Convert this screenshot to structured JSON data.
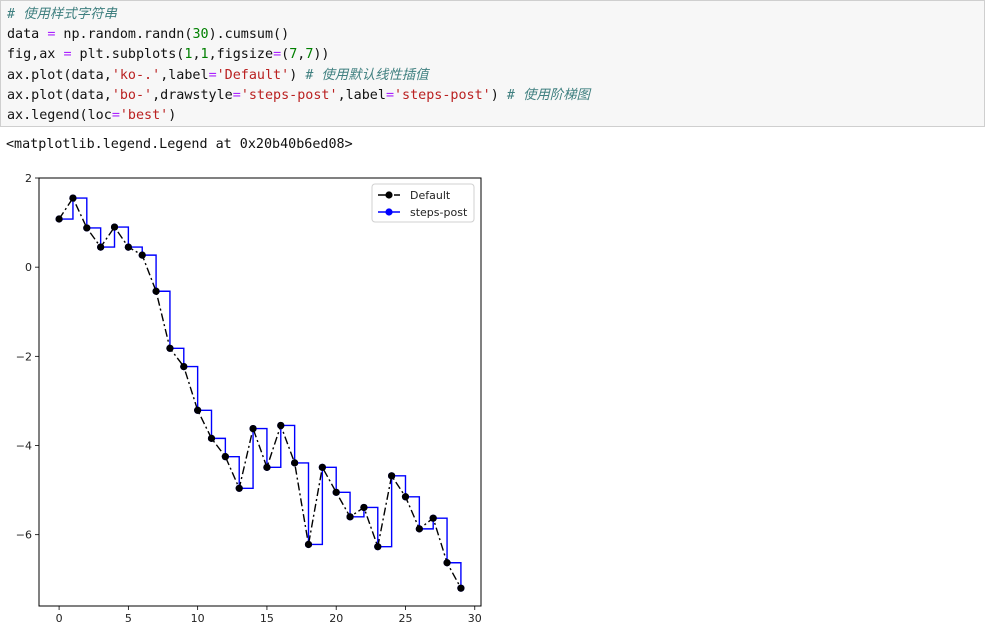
{
  "cell": {
    "code_lines": [
      [
        {
          "t": "# 使用样式字符串",
          "c": "comment"
        }
      ],
      [
        {
          "t": "data "
        },
        {
          "t": "=",
          "c": "op"
        },
        {
          "t": " np.random.randn("
        },
        {
          "t": "30",
          "c": "num"
        },
        {
          "t": ").cumsum()"
        }
      ],
      [
        {
          "t": "fig,ax "
        },
        {
          "t": "=",
          "c": "op"
        },
        {
          "t": " plt.subplots("
        },
        {
          "t": "1",
          "c": "num"
        },
        {
          "t": ","
        },
        {
          "t": "1",
          "c": "num"
        },
        {
          "t": ",figsize"
        },
        {
          "t": "=",
          "c": "op"
        },
        {
          "t": "("
        },
        {
          "t": "7",
          "c": "num"
        },
        {
          "t": ","
        },
        {
          "t": "7",
          "c": "num"
        },
        {
          "t": "))"
        }
      ],
      [
        {
          "t": "ax.plot(data,"
        },
        {
          "t": "'ko-.'",
          "c": "str"
        },
        {
          "t": ",label"
        },
        {
          "t": "=",
          "c": "op"
        },
        {
          "t": "'Default'",
          "c": "str"
        },
        {
          "t": ") "
        },
        {
          "t": "# 使用默认线性插值",
          "c": "comment"
        }
      ],
      [
        {
          "t": "ax.plot(data,"
        },
        {
          "t": "'bo-'",
          "c": "str"
        },
        {
          "t": ",drawstyle"
        },
        {
          "t": "=",
          "c": "op"
        },
        {
          "t": "'steps-post'",
          "c": "str"
        },
        {
          "t": ",label"
        },
        {
          "t": "=",
          "c": "op"
        },
        {
          "t": "'steps-post'",
          "c": "str"
        },
        {
          "t": ") "
        },
        {
          "t": "# 使用阶梯图",
          "c": "comment"
        }
      ],
      [
        {
          "t": "ax.legend(loc"
        },
        {
          "t": "=",
          "c": "op"
        },
        {
          "t": "'best'",
          "c": "str"
        },
        {
          "t": ")"
        }
      ]
    ]
  },
  "output": {
    "text": "<matplotlib.legend.Legend at 0x20b40b6ed08>"
  },
  "colors": {
    "default_series": "#000000",
    "steps_series": "#0000ff"
  },
  "chart_data": {
    "type": "line",
    "title": "",
    "xlabel": "",
    "ylabel": "",
    "xlim": [
      -1.45,
      30.45
    ],
    "ylim": [
      -7.6,
      2
    ],
    "xticks": [
      0,
      5,
      10,
      15,
      20,
      25,
      30
    ],
    "yticks": [
      2,
      0,
      -2,
      -4,
      -6
    ],
    "ytick_labels": [
      "2",
      "0",
      "−2",
      "−4",
      "−6"
    ],
    "grid": false,
    "legend_position": "top-right",
    "x": [
      0,
      1,
      2,
      3,
      4,
      5,
      6,
      7,
      8,
      9,
      10,
      11,
      12,
      13,
      14,
      15,
      16,
      17,
      18,
      19,
      20,
      21,
      22,
      23,
      24,
      25,
      26,
      27,
      28,
      29
    ],
    "series": [
      {
        "name": "Default",
        "style": "ko-.",
        "drawstyle": "default",
        "values": [
          1.08,
          1.55,
          0.88,
          0.45,
          0.9,
          0.45,
          0.27,
          -0.54,
          -1.82,
          -2.23,
          -3.21,
          -3.84,
          -4.25,
          -4.96,
          -3.62,
          -4.49,
          -3.55,
          -4.39,
          -6.22,
          -4.49,
          -5.05,
          -5.6,
          -5.39,
          -6.27,
          -4.68,
          -5.15,
          -5.87,
          -5.63,
          -6.63,
          -7.2
        ]
      },
      {
        "name": "steps-post",
        "style": "bo-",
        "drawstyle": "steps-post",
        "values": [
          1.08,
          1.55,
          0.88,
          0.45,
          0.9,
          0.45,
          0.27,
          -0.54,
          -1.82,
          -2.23,
          -3.21,
          -3.84,
          -4.25,
          -4.96,
          -3.62,
          -4.49,
          -3.55,
          -4.39,
          -6.22,
          -4.49,
          -5.05,
          -5.6,
          -5.39,
          -6.27,
          -4.68,
          -5.15,
          -5.87,
          -5.63,
          -6.63,
          -7.2
        ]
      }
    ]
  }
}
